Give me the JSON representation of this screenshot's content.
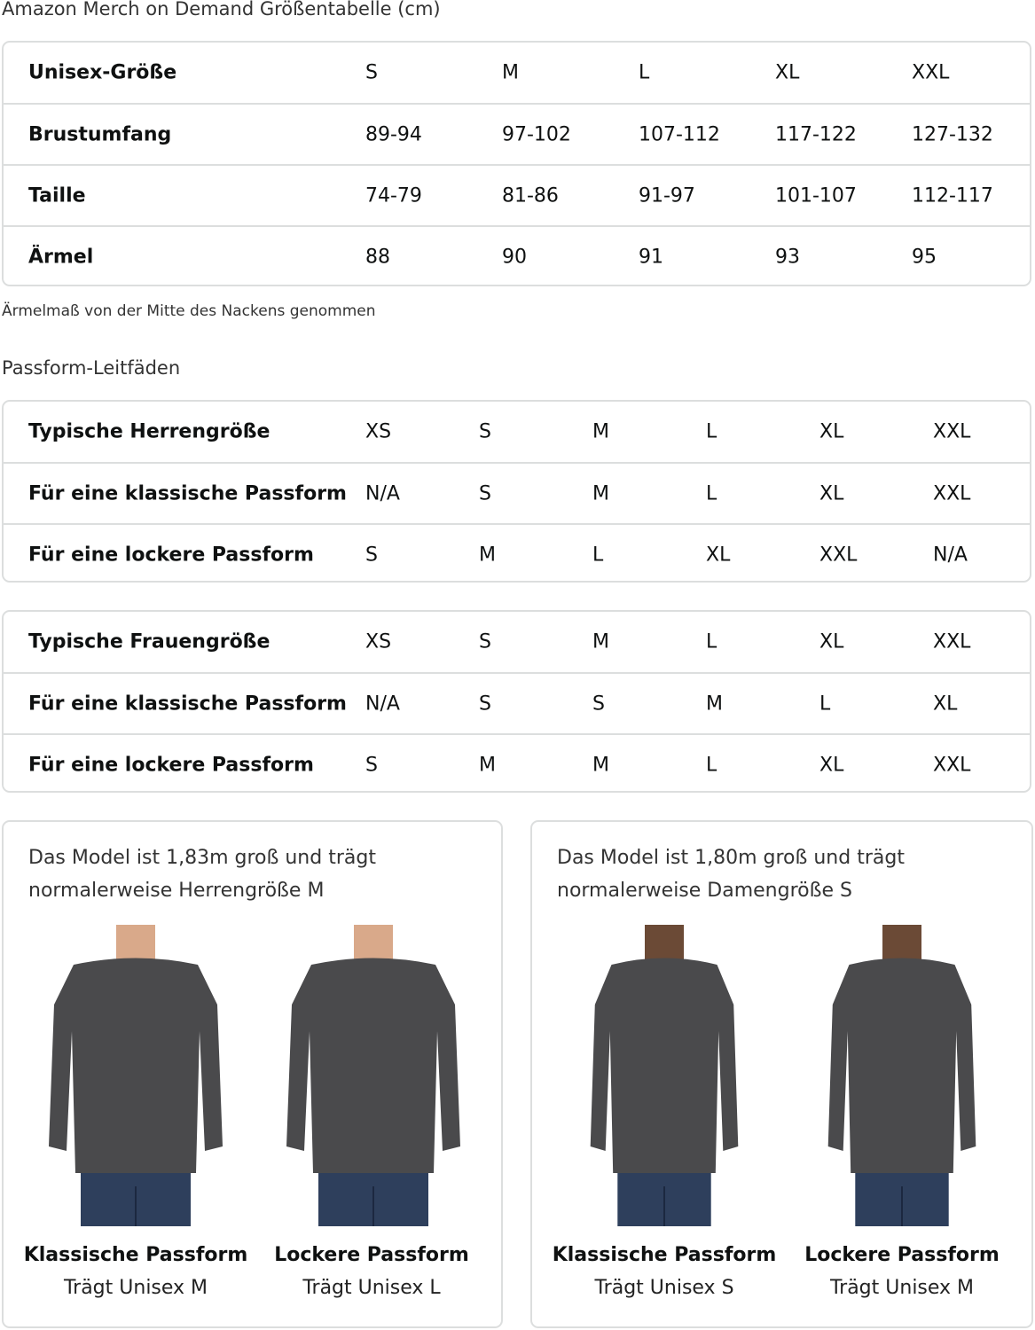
{
  "title": "Amazon Merch on Demand Größentabelle (cm)",
  "size_table": {
    "rows": [
      [
        "Unisex-Größe",
        "S",
        "M",
        "L",
        "XL",
        "XXL"
      ],
      [
        "Brustumfang",
        "89-94",
        "97-102",
        "107-112",
        "117-122",
        "127-132"
      ],
      [
        "Taille",
        "74-79",
        "81-86",
        "91-97",
        "101-107",
        "112-117"
      ],
      [
        "Ärmel",
        "88",
        "90",
        "91",
        "93",
        "95"
      ]
    ]
  },
  "note": "Ärmelmaß von der Mitte des Nackens genommen",
  "fit_guides_title": "Passform-Leitfäden",
  "men_table": {
    "rows": [
      [
        "Typische Herrengröße",
        "XS",
        "S",
        "M",
        "L",
        "XL",
        "XXL"
      ],
      [
        "Für eine klassische Passform",
        "N/A",
        "S",
        "M",
        "L",
        "XL",
        "XXL"
      ],
      [
        "Für eine lockere Passform",
        "S",
        "M",
        "L",
        "XL",
        "XXL",
        "N/A"
      ]
    ]
  },
  "women_table": {
    "rows": [
      [
        "Typische Frauengröße",
        "XS",
        "S",
        "M",
        "L",
        "XL",
        "XXL"
      ],
      [
        "Für eine klassische Passform",
        "N/A",
        "S",
        "S",
        "M",
        "L",
        "XL"
      ],
      [
        "Für eine lockere Passform",
        "S",
        "M",
        "M",
        "L",
        "XL",
        "XXL"
      ]
    ]
  },
  "cards": [
    {
      "desc": "Das Model ist 1,83m groß und trägt normalerweise Herrengröße M",
      "models": [
        {
          "fit": "Klassische Passform",
          "wears": "Trägt Unisex M"
        },
        {
          "fit": "Lockere Passform",
          "wears": "Trägt Unisex L"
        }
      ]
    },
    {
      "desc": "Das Model ist 1,80m groß und trägt normalerweise Damengröße S",
      "models": [
        {
          "fit": "Klassische Passform",
          "wears": "Trägt Unisex S"
        },
        {
          "fit": "Lockere Passform",
          "wears": "Trägt Unisex M"
        }
      ]
    }
  ],
  "colors": {
    "shirt": "#4a4a4c",
    "jeans": "#2e3f5c",
    "border": "#dcdede"
  }
}
